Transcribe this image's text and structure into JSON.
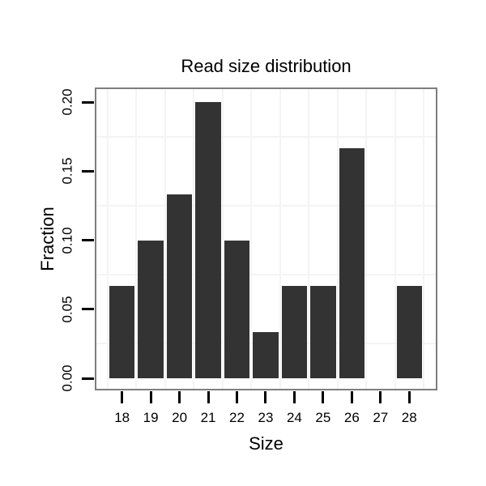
{
  "colors": {
    "background": "#ffffff",
    "bar": "#333333",
    "panel_border": "#7e7e7e",
    "grid_minor": "#f4f4f4",
    "axis_text": "#000000",
    "tick_mark": "#000000"
  },
  "chart_data": {
    "type": "bar",
    "title": "Read size distribution",
    "xlabel": "Size",
    "ylabel": "Fraction",
    "categories": [
      "18",
      "19",
      "20",
      "21",
      "22",
      "23",
      "24",
      "25",
      "26",
      "27",
      "28"
    ],
    "values": [
      0.0667,
      0.1,
      0.1333,
      0.2,
      0.1,
      0.0333,
      0.0667,
      0.0667,
      0.1667,
      0.0,
      0.0667
    ],
    "y_tick_labels": [
      "0.00",
      "0.05",
      "0.10",
      "0.15",
      "0.20"
    ],
    "y_tick_values": [
      0.0,
      0.05,
      0.1,
      0.15,
      0.2
    ],
    "y_minor_gridline_values": [
      0.025,
      0.075,
      0.125,
      0.175
    ],
    "ylim": [
      -0.0105,
      0.2105
    ],
    "grid": "minor-only",
    "legend": "none",
    "bar_color": "#333333",
    "y_tick_label_rotation_deg": 90
  }
}
